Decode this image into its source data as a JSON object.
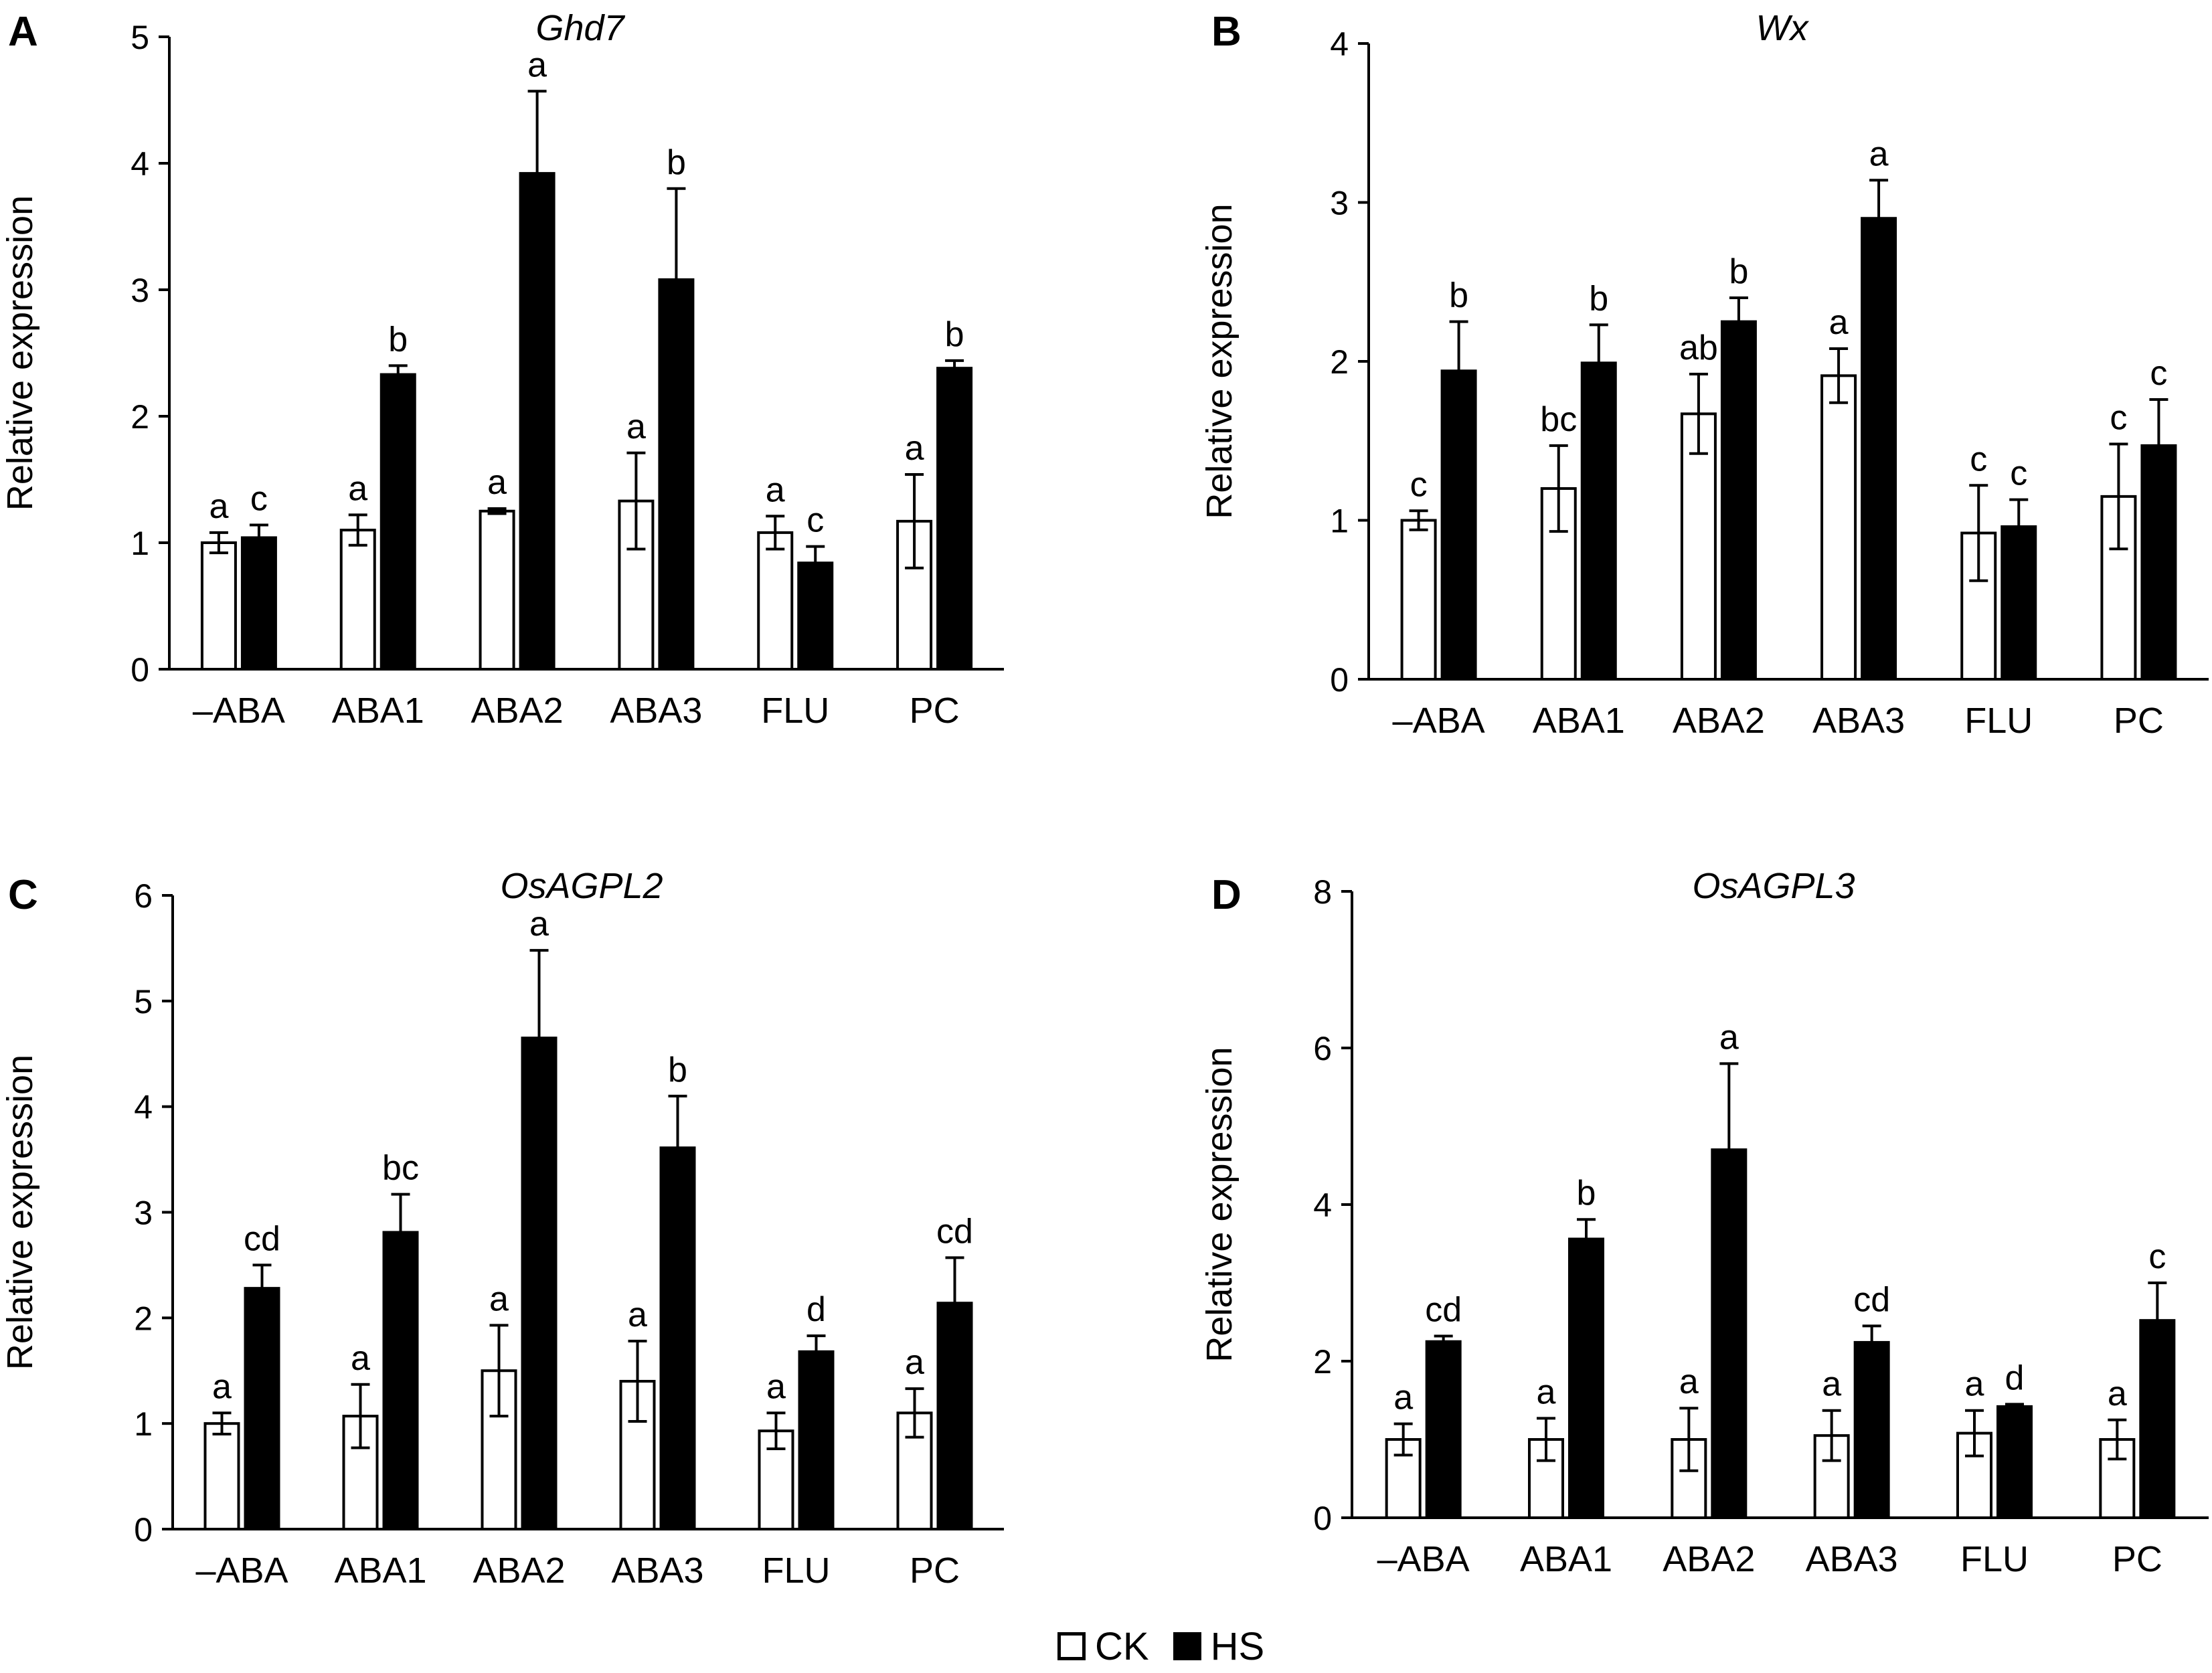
{
  "chart_data": [
    {
      "type": "bar",
      "panel": "A",
      "title": "Ghd7",
      "ylabel": "Relative expression",
      "ylim": [
        0,
        5
      ],
      "yticks": [
        0,
        1,
        2,
        3,
        4,
        5
      ],
      "categories": [
        "–ABA",
        "ABA1",
        "ABA2",
        "ABA3",
        "FLU",
        "PC"
      ],
      "series": [
        {
          "name": "CK",
          "values": [
            1.0,
            1.1,
            1.25,
            1.33,
            1.08,
            1.17
          ],
          "errors": [
            0.08,
            0.12,
            0.02,
            0.38,
            0.13,
            0.37
          ],
          "letters": [
            "a",
            "a",
            "a",
            "a",
            "a",
            "a"
          ]
        },
        {
          "name": "HS",
          "values": [
            1.04,
            2.33,
            3.92,
            3.08,
            0.84,
            2.38
          ],
          "errors": [
            0.1,
            0.07,
            0.65,
            0.72,
            0.13,
            0.06
          ],
          "letters": [
            "c",
            "b",
            "a",
            "b",
            "c",
            "b"
          ]
        }
      ]
    },
    {
      "type": "bar",
      "panel": "B",
      "title": "Wx",
      "ylabel": "Relative expression",
      "ylim": [
        0,
        4
      ],
      "yticks": [
        0,
        1,
        2,
        3,
        4
      ],
      "categories": [
        "–ABA",
        "ABA1",
        "ABA2",
        "ABA3",
        "FLU",
        "PC"
      ],
      "series": [
        {
          "name": "CK",
          "values": [
            1.0,
            1.2,
            1.67,
            1.91,
            0.92,
            1.15
          ],
          "errors": [
            0.06,
            0.27,
            0.25,
            0.17,
            0.3,
            0.33
          ],
          "letters": [
            "c",
            "bc",
            "ab",
            "a",
            "c",
            "c"
          ]
        },
        {
          "name": "HS",
          "values": [
            1.94,
            1.99,
            2.25,
            2.9,
            0.96,
            1.47
          ],
          "errors": [
            0.31,
            0.24,
            0.15,
            0.24,
            0.17,
            0.29
          ],
          "letters": [
            "b",
            "b",
            "b",
            "a",
            "c",
            "c"
          ]
        }
      ]
    },
    {
      "type": "bar",
      "panel": "C",
      "title": "OsAGPL2",
      "ylabel": "Relative expression",
      "ylim": [
        0,
        6
      ],
      "yticks": [
        0,
        1,
        2,
        3,
        4,
        5,
        6
      ],
      "categories": [
        "–ABA",
        "ABA1",
        "ABA2",
        "ABA3",
        "FLU",
        "PC"
      ],
      "series": [
        {
          "name": "CK",
          "values": [
            1.0,
            1.07,
            1.5,
            1.4,
            0.93,
            1.1
          ],
          "errors": [
            0.1,
            0.3,
            0.43,
            0.38,
            0.17,
            0.23
          ],
          "letters": [
            "a",
            "a",
            "a",
            "a",
            "a",
            "a"
          ]
        },
        {
          "name": "HS",
          "values": [
            2.28,
            2.81,
            4.65,
            3.61,
            1.68,
            2.14
          ],
          "errors": [
            0.22,
            0.36,
            0.83,
            0.49,
            0.15,
            0.43
          ],
          "letters": [
            "cd",
            "bc",
            "a",
            "b",
            "d",
            "cd"
          ]
        }
      ]
    },
    {
      "type": "bar",
      "panel": "D",
      "title": "OsAGPL3",
      "ylabel": "Relative expression",
      "ylim": [
        0,
        8
      ],
      "yticks": [
        0,
        2,
        4,
        6,
        8
      ],
      "categories": [
        "–ABA",
        "ABA1",
        "ABA2",
        "ABA3",
        "FLU",
        "PC"
      ],
      "series": [
        {
          "name": "CK",
          "values": [
            1.0,
            1.0,
            1.0,
            1.05,
            1.08,
            1.0
          ],
          "errors": [
            0.2,
            0.27,
            0.4,
            0.32,
            0.29,
            0.25
          ],
          "letters": [
            "a",
            "a",
            "a",
            "a",
            "a",
            "a"
          ]
        },
        {
          "name": "HS",
          "values": [
            2.25,
            3.56,
            4.7,
            2.24,
            1.42,
            2.52
          ],
          "errors": [
            0.07,
            0.25,
            1.1,
            0.21,
            0.03,
            0.48
          ],
          "letters": [
            "cd",
            "b",
            "a",
            "cd",
            "d",
            "c"
          ]
        }
      ]
    }
  ],
  "legend": {
    "position": "bottom-center",
    "items": [
      {
        "label": "CK",
        "fill": "#ffffff"
      },
      {
        "label": "HS",
        "fill": "#000000"
      }
    ]
  },
  "colors": {
    "CK": "#ffffff",
    "HS": "#000000",
    "stroke": "#000000"
  }
}
